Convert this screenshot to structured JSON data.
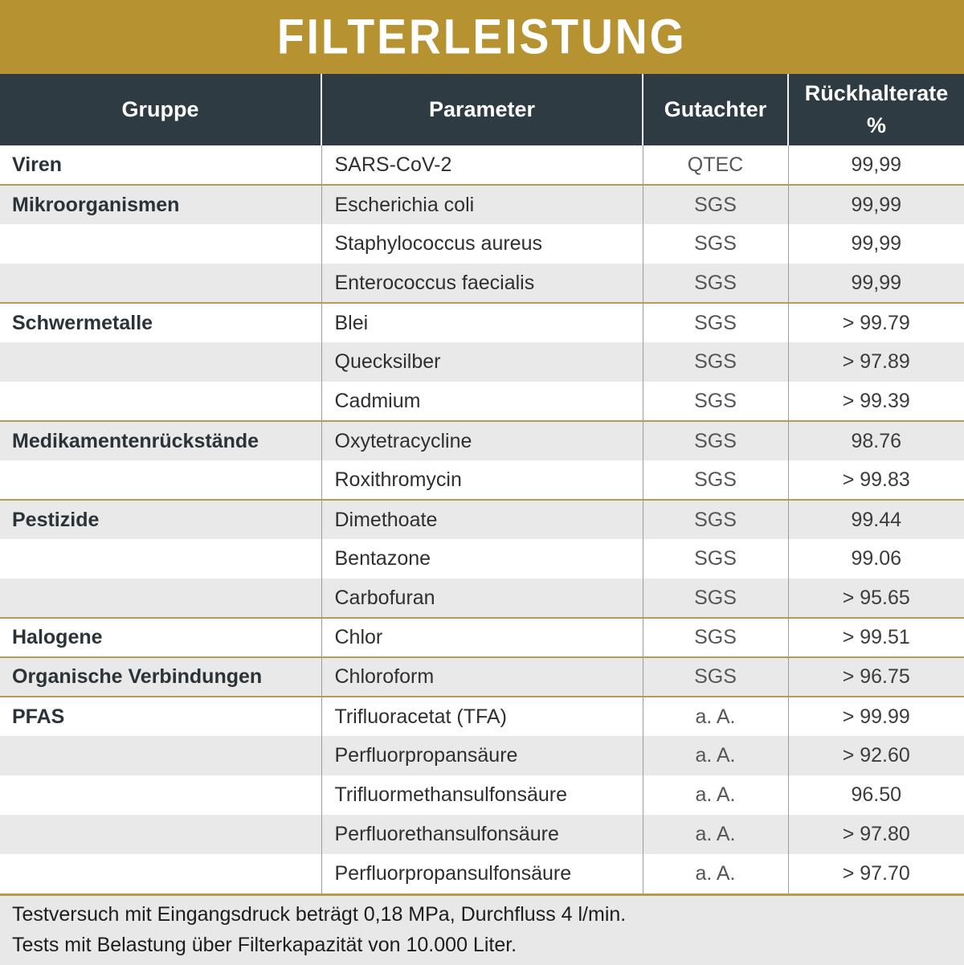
{
  "colors": {
    "accent_gold": "#b79231",
    "header_dark": "#2e3b42",
    "row_alt_gray": "#e9e9e9",
    "group_separator": "#b69c52",
    "footer_bg": "#e8e8e8"
  },
  "chart_data": {
    "type": "table",
    "title": "FILTERLEISTUNG",
    "columns": [
      "Gruppe",
      "Parameter",
      "Gutachter",
      "Rückhalterate %"
    ],
    "rows": [
      {
        "group": "Viren",
        "parameter": "SARS-CoV-2",
        "auditor": "QTEC",
        "rate": "99,99",
        "groupEnd": true
      },
      {
        "group": "Mikroorganismen",
        "parameter": "Escherichia coli",
        "auditor": "SGS",
        "rate": "99,99",
        "groupEnd": false
      },
      {
        "group": "",
        "parameter": "Staphylococcus aureus",
        "auditor": "SGS",
        "rate": "99,99",
        "groupEnd": false
      },
      {
        "group": "",
        "parameter": "Enterococcus faecialis",
        "auditor": "SGS",
        "rate": "99,99",
        "groupEnd": true
      },
      {
        "group": "Schwermetalle",
        "parameter": "Blei",
        "auditor": "SGS",
        "rate": "> 99.79",
        "groupEnd": false
      },
      {
        "group": "",
        "parameter": "Quecksilber",
        "auditor": "SGS",
        "rate": "> 97.89",
        "groupEnd": false
      },
      {
        "group": "",
        "parameter": "Cadmium",
        "auditor": "SGS",
        "rate": "> 99.39",
        "groupEnd": true
      },
      {
        "group": "Medikamentenrückstände",
        "parameter": "Oxytetracycline",
        "auditor": "SGS",
        "rate": "98.76",
        "groupEnd": false
      },
      {
        "group": "",
        "parameter": "Roxithromycin",
        "auditor": "SGS",
        "rate": "> 99.83",
        "groupEnd": true
      },
      {
        "group": "Pestizide",
        "parameter": "Dimethoate",
        "auditor": "SGS",
        "rate": "99.44",
        "groupEnd": false
      },
      {
        "group": "",
        "parameter": "Bentazone",
        "auditor": "SGS",
        "rate": "99.06",
        "groupEnd": false
      },
      {
        "group": "",
        "parameter": "Carbofuran",
        "auditor": "SGS",
        "rate": "> 95.65",
        "groupEnd": true
      },
      {
        "group": "Halogene",
        "parameter": "Chlor",
        "auditor": "SGS",
        "rate": "> 99.51",
        "groupEnd": true
      },
      {
        "group": "Organische Verbindungen",
        "parameter": "Chloroform",
        "auditor": "SGS",
        "rate": "> 96.75",
        "groupEnd": true
      },
      {
        "group": "PFAS",
        "parameter": "Trifluoracetat (TFA)",
        "auditor": "a. A.",
        "rate": "> 99.99",
        "groupEnd": false
      },
      {
        "group": "",
        "parameter": "Perfluorpropansäure",
        "auditor": "a. A.",
        "rate": "> 92.60",
        "groupEnd": false
      },
      {
        "group": "",
        "parameter": "Trifluormethansulfonsäure",
        "auditor": "a. A.",
        "rate": "96.50",
        "groupEnd": false
      },
      {
        "group": "",
        "parameter": "Perfluorethansulfonsäure",
        "auditor": "a. A.",
        "rate": "> 97.80",
        "groupEnd": false
      },
      {
        "group": "",
        "parameter": "Perfluorpropansulfonsäure",
        "auditor": "a. A.",
        "rate": "> 97.70",
        "groupEnd": false
      }
    ],
    "footnotes": [
      "Testversuch mit Eingangsdruck beträgt 0,18 MPa, Durchfluss 4 l/min.",
      "Tests mit Belastung über Filterkapazität von 10.000 Liter."
    ]
  }
}
